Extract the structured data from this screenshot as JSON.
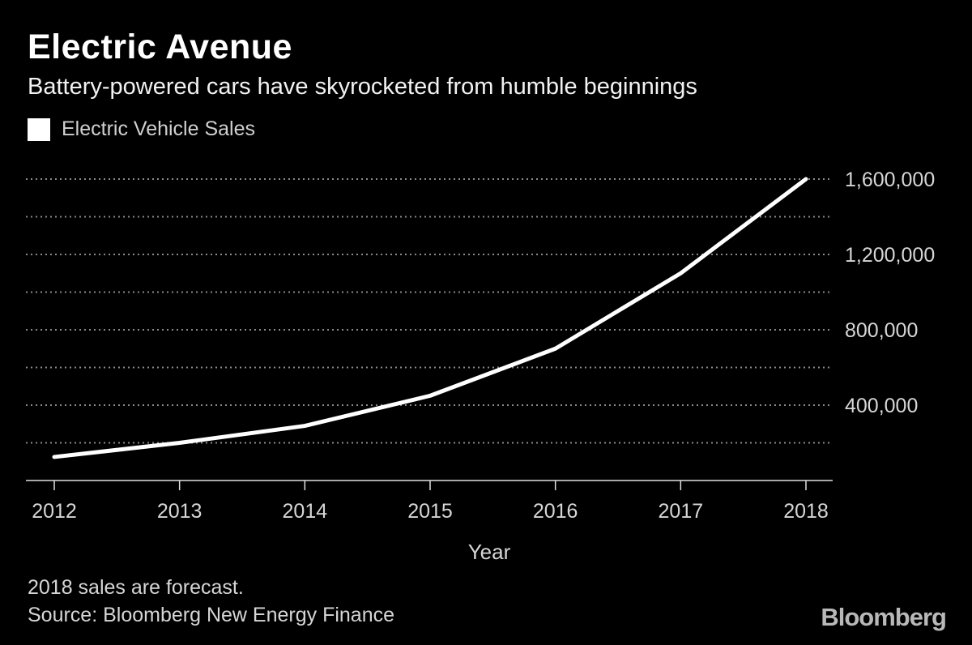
{
  "chart_data": {
    "type": "line",
    "title": "Electric Avenue",
    "subtitle": "Battery-powered cars have skyrocketed from humble beginnings",
    "legend": [
      "Electric Vehicle Sales"
    ],
    "xlabel": "Year",
    "ylabel": "",
    "categories": [
      "2012",
      "2013",
      "2014",
      "2015",
      "2016",
      "2017",
      "2018"
    ],
    "series": [
      {
        "name": "Electric Vehicle Sales",
        "values": [
          125000,
          200000,
          290000,
          450000,
          700000,
          1100000,
          1600000
        ],
        "color": "#ffffff"
      }
    ],
    "ylim": [
      0,
      1600000
    ],
    "y_ticks": [
      400000,
      800000,
      1200000,
      1600000
    ],
    "y_tick_labels": [
      "400,000",
      "800,000",
      "1,200,000",
      "1,600,000"
    ],
    "y_gridlines": [
      200000,
      400000,
      600000,
      800000,
      1000000,
      1200000,
      1400000,
      1600000
    ],
    "grid": true,
    "legend_position": "top-left"
  },
  "footnote": {
    "line1": "2018 sales are forecast.",
    "line2": "Source: Bloomberg New Energy Finance"
  },
  "brand": "Bloomberg",
  "colors": {
    "background": "#000000",
    "line": "#ffffff",
    "grid": "#8a8a8a",
    "text": "#d6d6d6"
  }
}
